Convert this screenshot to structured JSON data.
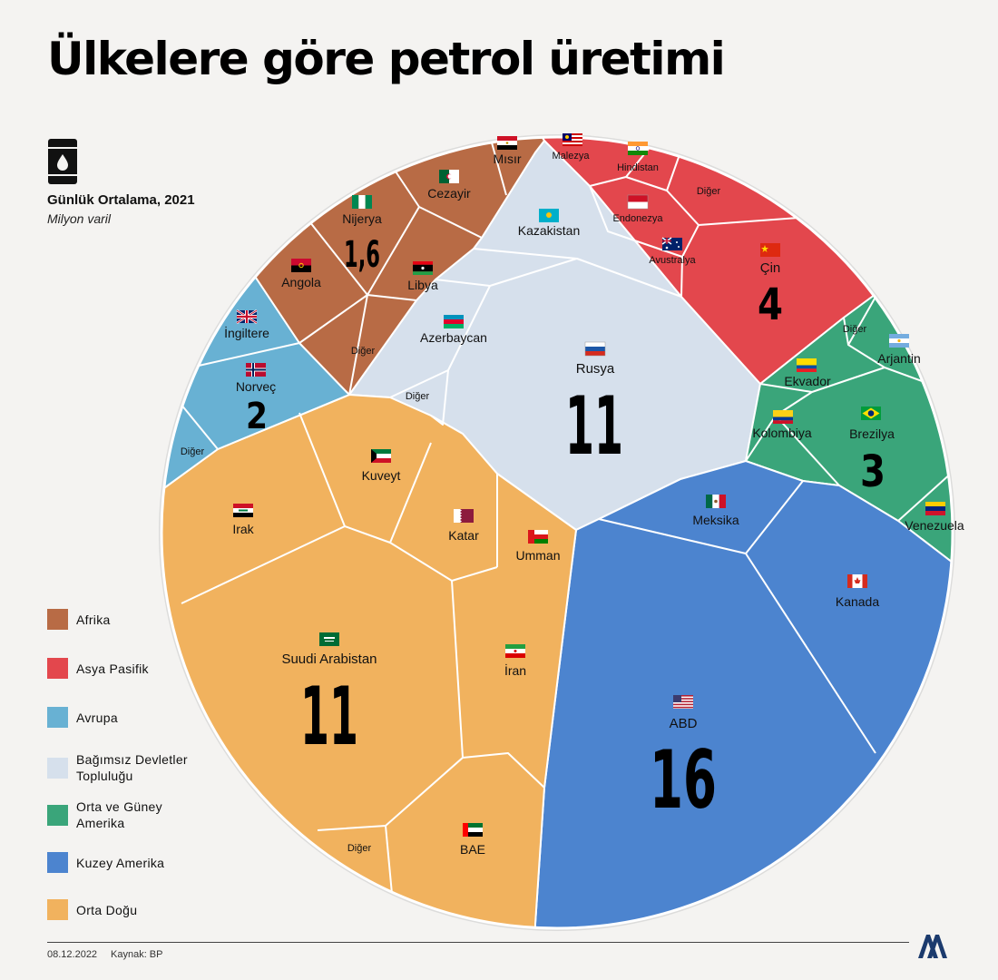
{
  "title": "Ülkelere göre petrol üretimi",
  "subtitle": "Günlük Ortalama, 2021",
  "unit": "Milyon varil",
  "footer": {
    "date": "08.12.2022",
    "source": "Kaynak: BP"
  },
  "logo_text": "AA",
  "icons": {
    "barrel": "oil-barrel-icon",
    "logo": "aa-logo-icon"
  },
  "legend": [
    {
      "label": "Afrika",
      "color": "#b86b45"
    },
    {
      "label": "Asya Pasifik",
      "color": "#e3474d"
    },
    {
      "label": "Avrupa",
      "color": "#68b1d3"
    },
    {
      "label": "Bağımsız Devletler Topluluğu",
      "color": "#d6e0ec"
    },
    {
      "label": "Orta ve Güney Amerika",
      "color": "#3aa57a"
    },
    {
      "label": "Kuzey Amerika",
      "color": "#4c84cf"
    },
    {
      "label": "Orta Doğu",
      "color": "#f1b25e"
    }
  ],
  "chart_data": {
    "type": "voronoi-treemap",
    "unit": "Milyon varil",
    "regions": [
      {
        "name": "Kuzey Amerika",
        "total": "16",
        "color": "#4c84cf",
        "countries": [
          "ABD",
          "Kanada",
          "Meksika"
        ]
      },
      {
        "name": "Orta Doğu",
        "total": "11",
        "color": "#f1b25e",
        "countries": [
          "Suudi Arabistan",
          "Irak",
          "İran",
          "Kuveyt",
          "Katar",
          "Umman",
          "BAE",
          "Diğer"
        ]
      },
      {
        "name": "Bağımsız Devletler Topluluğu",
        "total": "11",
        "color": "#d6e0ec",
        "countries": [
          "Rusya",
          "Kazakistan",
          "Azerbaycan",
          "Diğer"
        ]
      },
      {
        "name": "Asya Pasifik",
        "total": "4",
        "color": "#e3474d",
        "countries": [
          "Çin",
          "Malezya",
          "Hindistan",
          "Endonezya",
          "Avustralya",
          "Diğer"
        ]
      },
      {
        "name": "Orta ve Güney Amerika",
        "total": "3",
        "color": "#3aa57a",
        "countries": [
          "Brezilya",
          "Kolombiya",
          "Ekvador",
          "Arjantin",
          "Venezuela",
          "Diğer"
        ]
      },
      {
        "name": "Avrupa",
        "total": "2",
        "color": "#68b1d3",
        "countries": [
          "Norveç",
          "İngiltere",
          "Diğer"
        ]
      },
      {
        "name": "Afrika",
        "total": "1,6",
        "color": "#b86b45",
        "countries": [
          "Nijerya",
          "Angola",
          "Libya",
          "Cezayir",
          "Mısır",
          "Diğer"
        ]
      }
    ]
  }
}
